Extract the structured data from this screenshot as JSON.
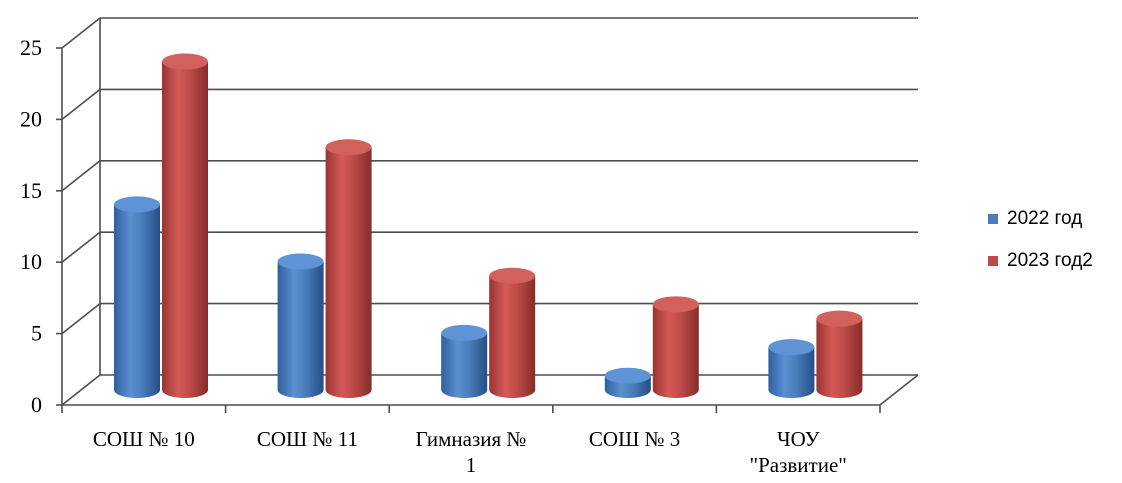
{
  "chart_data": {
    "type": "bar",
    "title": "",
    "xlabel": "",
    "ylabel": "",
    "ylim": [
      0,
      25
    ],
    "yticks": [
      "0",
      "5",
      "10",
      "15",
      "20",
      "25"
    ],
    "categories": [
      [
        "СОШ № 10"
      ],
      [
        "СОШ № 11"
      ],
      [
        "Гимназия №",
        "1"
      ],
      [
        "СОШ № 3"
      ],
      [
        "ЧОУ",
        "\"Развитие\""
      ]
    ],
    "series": [
      {
        "name": "2022 год",
        "values": [
          13,
          9,
          4,
          1,
          3
        ],
        "color": "#4a7ebb"
      },
      {
        "name": "2023 год2",
        "values": [
          23,
          17,
          8,
          6,
          5
        ],
        "color": "#be4b48"
      }
    ],
    "grid": true,
    "style": "3d-cylinder",
    "legend_position": "right"
  }
}
